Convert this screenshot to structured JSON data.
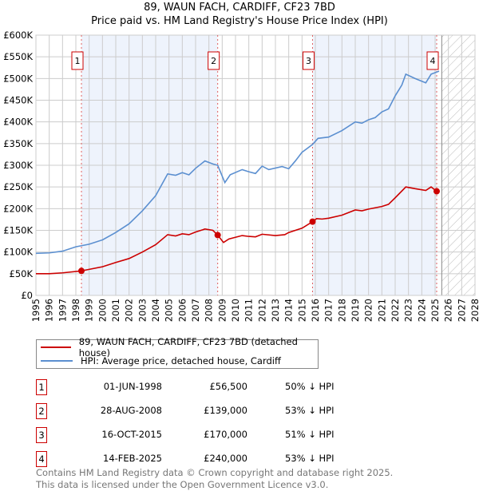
{
  "chart_data": {
    "type": "line",
    "title": "89, WAUN FACH, CARDIFF, CF23 7BD",
    "subtitle": "Price paid vs. HM Land Registry's House Price Index (HPI)",
    "xlim": [
      1995,
      2028
    ],
    "ylim": [
      0,
      600000
    ],
    "x_ticks": [
      "1995",
      "1996",
      "1997",
      "1998",
      "1999",
      "2000",
      "2001",
      "2002",
      "2003",
      "2004",
      "2005",
      "2006",
      "2007",
      "2008",
      "2009",
      "2010",
      "2011",
      "2012",
      "2013",
      "2014",
      "2015",
      "2016",
      "2017",
      "2018",
      "2019",
      "2020",
      "2021",
      "2022",
      "2023",
      "2024",
      "2025",
      "2026",
      "2027",
      "2028"
    ],
    "y_ticks": [
      {
        "v": 0,
        "l": "£0"
      },
      {
        "v": 50000,
        "l": "£50K"
      },
      {
        "v": 100000,
        "l": "£100K"
      },
      {
        "v": 150000,
        "l": "£150K"
      },
      {
        "v": 200000,
        "l": "£200K"
      },
      {
        "v": 250000,
        "l": "£250K"
      },
      {
        "v": 300000,
        "l": "£300K"
      },
      {
        "v": 350000,
        "l": "£350K"
      },
      {
        "v": 400000,
        "l": "£400K"
      },
      {
        "v": 450000,
        "l": "£450K"
      },
      {
        "v": 500000,
        "l": "£500K"
      },
      {
        "v": 550000,
        "l": "£550K"
      },
      {
        "v": 600000,
        "l": "£600K"
      }
    ],
    "grid": true,
    "forecast_start": 2025.5,
    "series": [
      {
        "name": "89, WAUN FACH, CARDIFF, CF23 7BD (detached house)",
        "color": "#cc0000",
        "points": [
          [
            1995,
            50000
          ],
          [
            1996,
            50000
          ],
          [
            1997,
            52000
          ],
          [
            1998.42,
            56500
          ],
          [
            1999,
            60000
          ],
          [
            2000,
            66000
          ],
          [
            2001,
            76000
          ],
          [
            2002,
            85000
          ],
          [
            2003,
            100000
          ],
          [
            2004,
            117000
          ],
          [
            2004.9,
            140000
          ],
          [
            2005.5,
            137000
          ],
          [
            2006,
            142000
          ],
          [
            2006.5,
            140000
          ],
          [
            2007,
            146000
          ],
          [
            2007.7,
            153000
          ],
          [
            2008.3,
            150000
          ],
          [
            2008.66,
            139000
          ],
          [
            2009.1,
            122000
          ],
          [
            2009.5,
            130000
          ],
          [
            2010.5,
            138000
          ],
          [
            2011,
            136000
          ],
          [
            2011.5,
            135000
          ],
          [
            2012,
            141000
          ],
          [
            2013,
            138000
          ],
          [
            2013.7,
            140000
          ],
          [
            2014,
            145000
          ],
          [
            2015,
            155000
          ],
          [
            2015.79,
            170000
          ],
          [
            2016.1,
            177000
          ],
          [
            2016.5,
            176000
          ],
          [
            2017,
            178000
          ],
          [
            2018,
            185000
          ],
          [
            2019,
            197000
          ],
          [
            2019.5,
            195000
          ],
          [
            2020,
            199000
          ],
          [
            2021,
            205000
          ],
          [
            2021.5,
            210000
          ],
          [
            2022,
            225000
          ],
          [
            2022.8,
            250000
          ],
          [
            2023.5,
            246000
          ],
          [
            2024.3,
            242000
          ],
          [
            2024.7,
            250000
          ],
          [
            2025.12,
            240000
          ]
        ]
      },
      {
        "name": "HPI: Average price, detached house, Cardiff",
        "color": "#5b8fd0",
        "points": [
          [
            1995,
            97000
          ],
          [
            1996,
            98000
          ],
          [
            1997,
            102000
          ],
          [
            1998,
            112000
          ],
          [
            1999,
            118000
          ],
          [
            2000,
            128000
          ],
          [
            2001,
            145000
          ],
          [
            2002,
            165000
          ],
          [
            2003,
            195000
          ],
          [
            2004,
            230000
          ],
          [
            2004.9,
            280000
          ],
          [
            2005.5,
            277000
          ],
          [
            2006,
            283000
          ],
          [
            2006.5,
            278000
          ],
          [
            2007,
            293000
          ],
          [
            2007.7,
            310000
          ],
          [
            2008.3,
            303000
          ],
          [
            2008.66,
            300000
          ],
          [
            2009.2,
            260000
          ],
          [
            2009.6,
            278000
          ],
          [
            2010.5,
            290000
          ],
          [
            2011,
            285000
          ],
          [
            2011.5,
            281000
          ],
          [
            2012,
            298000
          ],
          [
            2012.5,
            290000
          ],
          [
            2013.5,
            297000
          ],
          [
            2014,
            292000
          ],
          [
            2014.5,
            310000
          ],
          [
            2015,
            330000
          ],
          [
            2015.79,
            348000
          ],
          [
            2016.2,
            362000
          ],
          [
            2017,
            365000
          ],
          [
            2018,
            380000
          ],
          [
            2019,
            400000
          ],
          [
            2019.5,
            397000
          ],
          [
            2020,
            405000
          ],
          [
            2020.5,
            410000
          ],
          [
            2021,
            423000
          ],
          [
            2021.5,
            430000
          ],
          [
            2022,
            460000
          ],
          [
            2022.5,
            485000
          ],
          [
            2022.8,
            510000
          ],
          [
            2023.5,
            500000
          ],
          [
            2024.3,
            490000
          ],
          [
            2024.7,
            510000
          ],
          [
            2025.3,
            517000
          ]
        ]
      }
    ],
    "sales": [
      {
        "n": "1",
        "x": 1998.42,
        "y": 56500
      },
      {
        "n": "2",
        "x": 2008.66,
        "y": 139000
      },
      {
        "n": "3",
        "x": 2015.79,
        "y": 170000
      },
      {
        "n": "4",
        "x": 2025.12,
        "y": 240000
      }
    ]
  },
  "legend": {
    "property": "89, WAUN FACH, CARDIFF, CF23 7BD (detached house)",
    "hpi": "HPI: Average price, detached house, Cardiff"
  },
  "table": [
    {
      "n": "1",
      "date": "01-JUN-1998",
      "price": "£56,500",
      "pct": "50% ↓ HPI"
    },
    {
      "n": "2",
      "date": "28-AUG-2008",
      "price": "£139,000",
      "pct": "53% ↓ HPI"
    },
    {
      "n": "3",
      "date": "16-OCT-2015",
      "price": "£170,000",
      "pct": "51% ↓ HPI"
    },
    {
      "n": "4",
      "date": "14-FEB-2025",
      "price": "£240,000",
      "pct": "53% ↓ HPI"
    }
  ],
  "footer": {
    "line1": "Contains HM Land Registry data © Crown copyright and database right 2025.",
    "line2": "This data is licensed under the Open Government Licence v3.0."
  }
}
